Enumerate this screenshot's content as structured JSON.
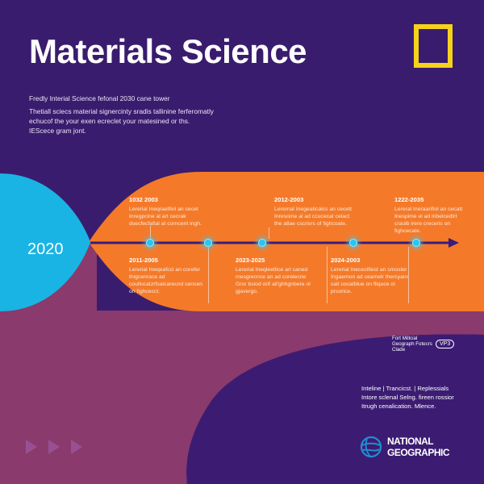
{
  "title": "Materials Science",
  "intro": {
    "lead": "Fredly Interial Science fefonal 2030 cane tower",
    "body": "Thetiall sciecs material signercinty sradis tallinine ferferomatly echucof the your exen ecreclet your matesined or ths. IEScece gram jont."
  },
  "timeline": {
    "start_year": "2020",
    "upper_events": [
      {
        "year": "1032 2003",
        "text": "Lererial Ineqraetfiol an cecet Inregpcine al art cecrak dsecfecfafial at corncent ingh."
      },
      {
        "year": "2012-2003",
        "text": "Lerernal Inegeaticalcs an cecett Inresome al ad ccucecat celact the atlae cscrisrs of fighcoate."
      },
      {
        "year": "1222-2035",
        "text": "Lereral Ineraarifiol an cecatt Inespime el ad lnbelcedtrt craulb irere creceris on fighcecate."
      }
    ],
    "lower_events": [
      {
        "year": "2011-2005",
        "text": "Lererial Ineqeafcci an corefer thigcenrace ad coullocatzrfsalcarecnd cencen on fighcecct."
      },
      {
        "year": "2023-2025",
        "text": "Lererial Ineqleettice arl caned mesgrecnce an ad corelecne Gror bsiod orif ail'ghhgnbere ol gjavergo."
      },
      {
        "year": "2024-2003",
        "text": "Lererial Inecestfiest an smoster Ingaemon ad ceamelr thercyanc sait cocatblue on fliquce ol prsorice."
      }
    ]
  },
  "badge": {
    "text": "Fort Millcial Geograph Fotecrs Clade",
    "oval": "VP3"
  },
  "credits": {
    "line1": "Inteline | Trancicst. | Replessials",
    "line2": "Intore sclenal Selng. fireen rossior",
    "line3": "Itrugh cenalication. Mlence."
  },
  "logo": {
    "line1": "NATIONAL",
    "line2": "GEOGRAPHIC",
    "frame_color": "#f5d31b"
  },
  "colors": {
    "background": "#3a1c6e",
    "orange_band": "#f47a2a",
    "cyan_blob": "#19b4e4",
    "mauve_blob": "#8a3a6c",
    "timeline_line": "#3a1c7a",
    "node": "#28c6f0"
  }
}
